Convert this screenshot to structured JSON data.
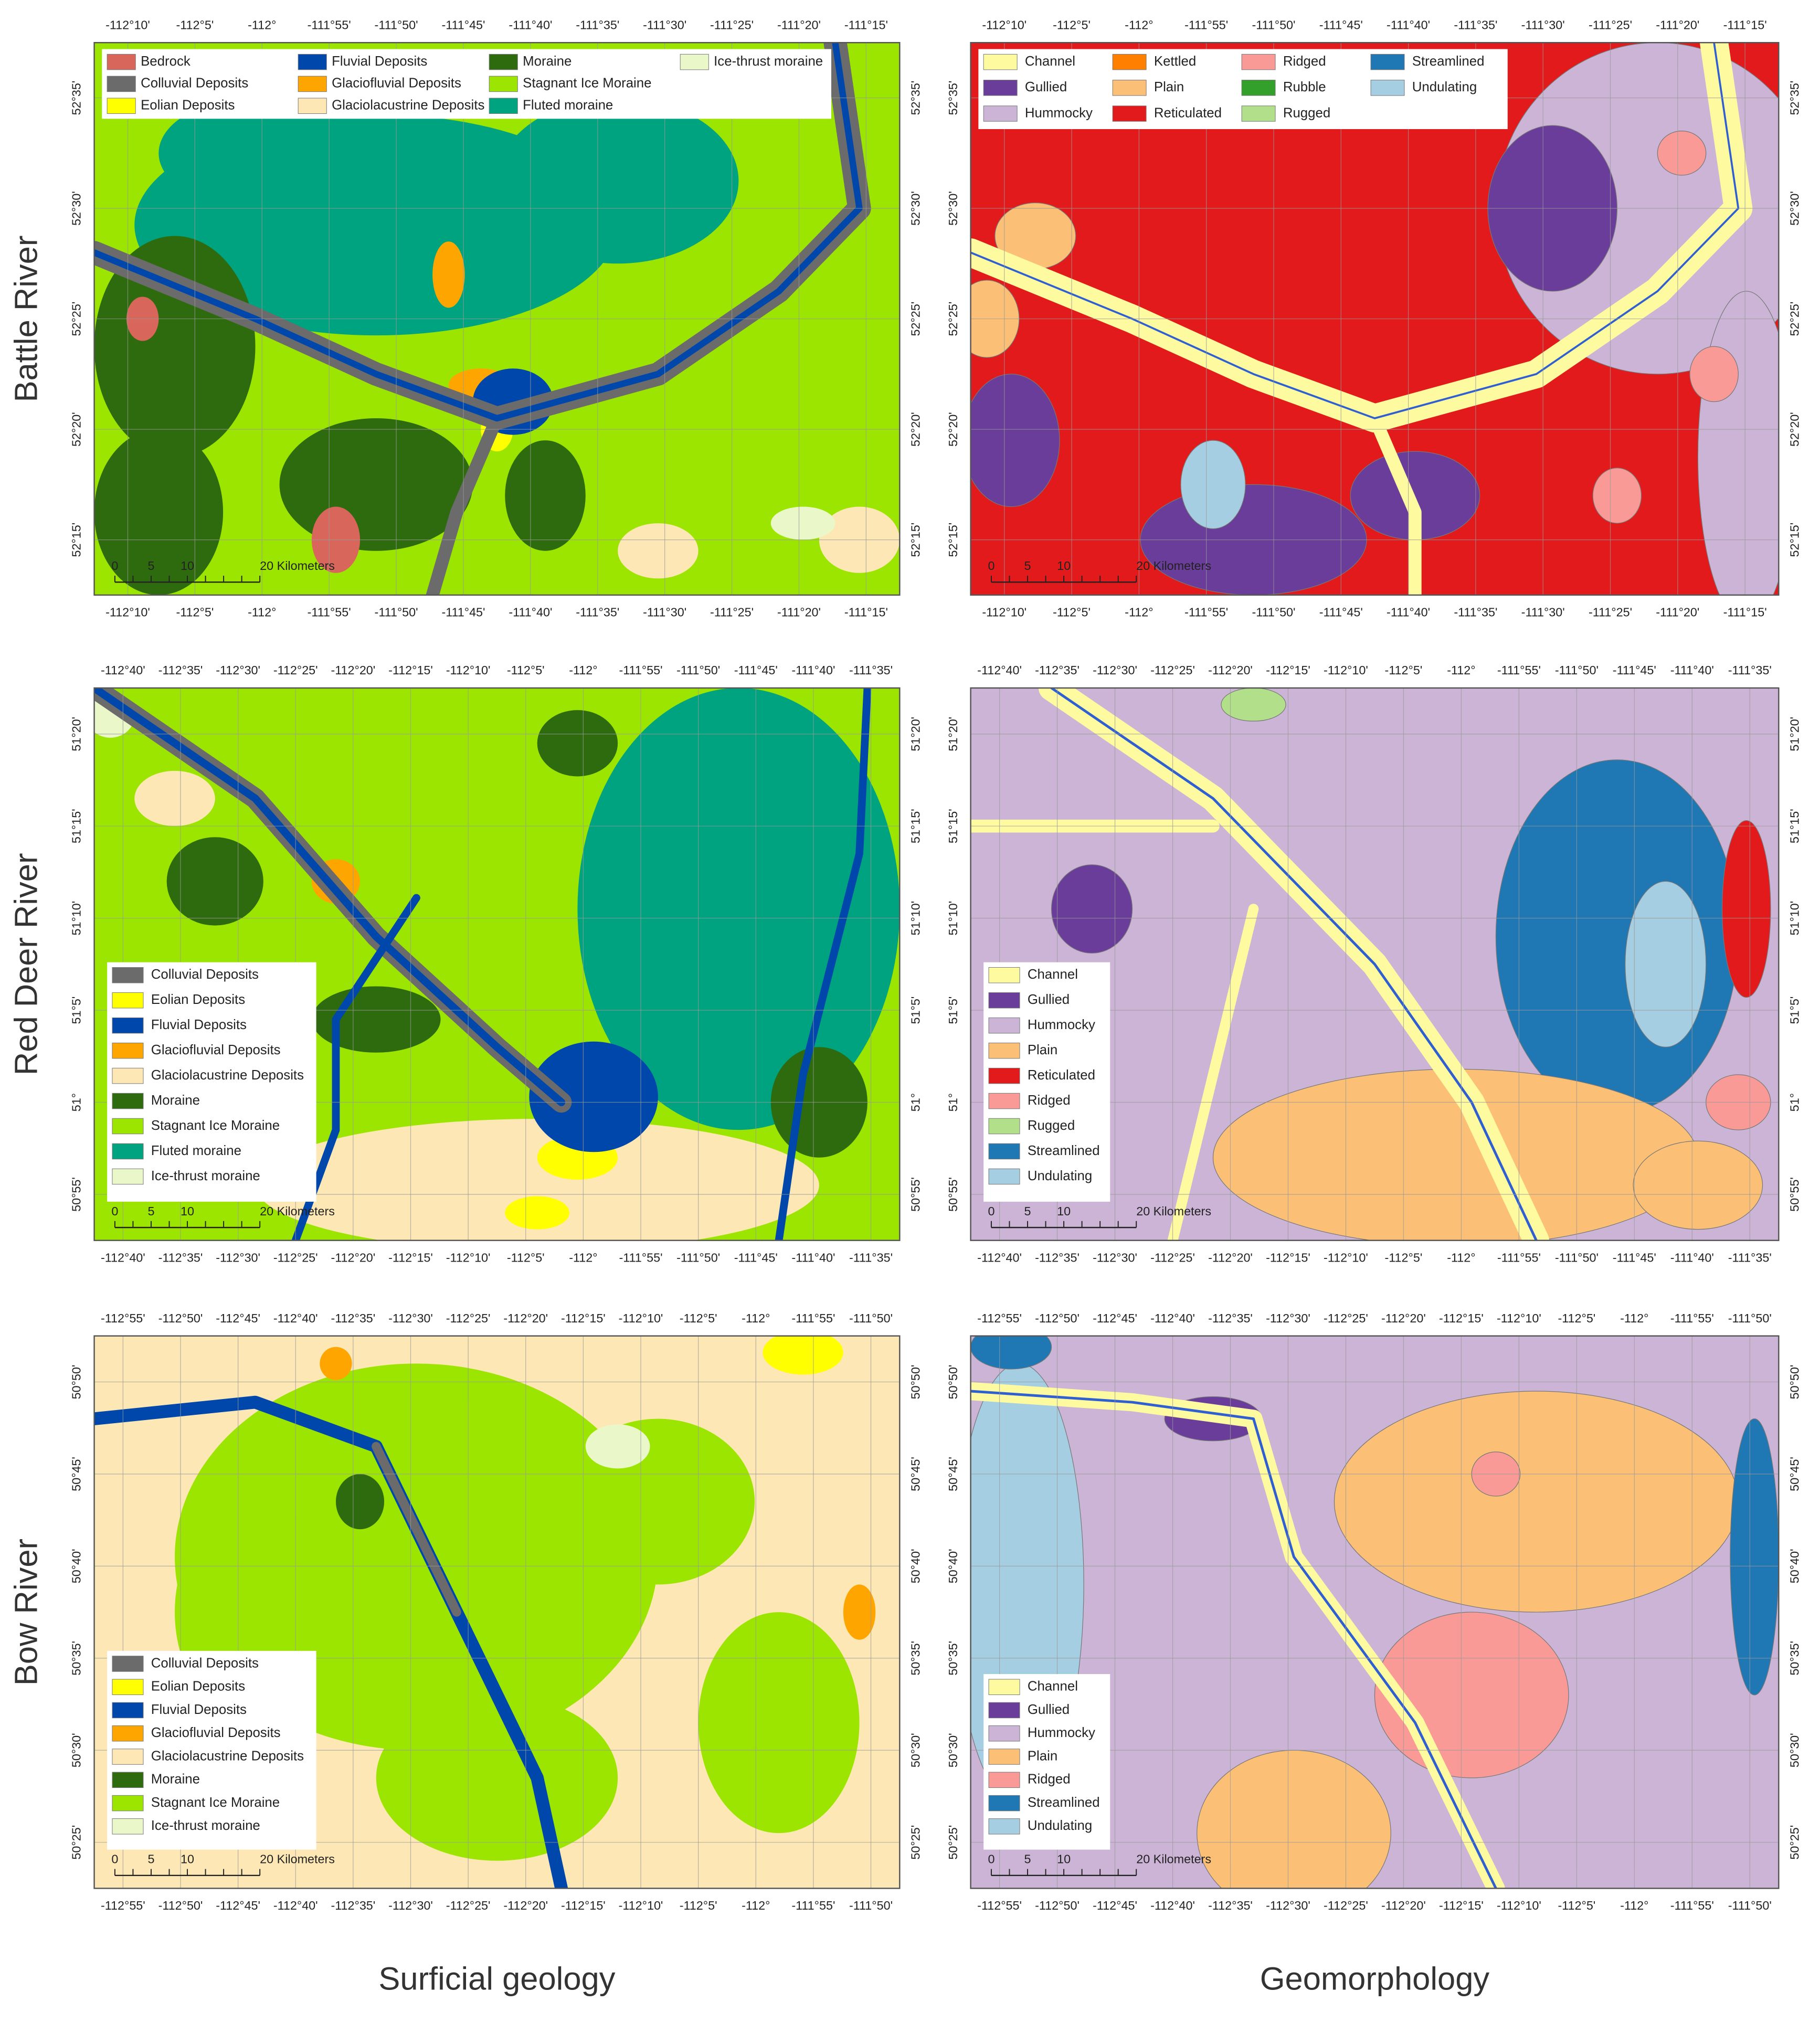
{
  "column_titles": [
    "Surficial geology",
    "Geomorphology"
  ],
  "scale_bar_labels": [
    "0",
    "5",
    "10",
    "20 Kilometers"
  ],
  "rows": [
    {
      "label": "Battle River",
      "lon_ticks": [
        "-112°10'",
        "-112°5'",
        "-112°",
        "-111°55'",
        "-111°50'",
        "-111°45'",
        "-111°40'",
        "-111°35'",
        "-111°30'",
        "-111°25'",
        "-111°20'",
        "-111°15'"
      ],
      "lat_ticks": [
        "52°35'",
        "52°30'",
        "52°25'",
        "52°20'",
        "52°15'"
      ],
      "maps": [
        {
          "legend": [
            {
              "name": "Bedrock",
              "color": "#d9665a"
            },
            {
              "name": "Colluvial Deposits",
              "color": "#6b6b6b"
            },
            {
              "name": "Eolian Deposits",
              "color": "#ffff00"
            },
            {
              "name": "Fluvial Deposits",
              "color": "#0047ab"
            },
            {
              "name": "Glaciofluvial Deposits",
              "color": "#ffa500"
            },
            {
              "name": "Glaciolacustrine Deposits",
              "color": "#fde7b5"
            },
            {
              "name": "Moraine",
              "color": "#2e6b0e"
            },
            {
              "name": "Stagnant Ice Moraine",
              "color": "#9be500"
            },
            {
              "name": "Fluted moraine",
              "color": "#00a37f"
            },
            {
              "name": "Ice-thrust moraine",
              "color": "#eaf7c8"
            }
          ]
        },
        {
          "legend": [
            {
              "name": "Channel",
              "color": "#fdfaa0"
            },
            {
              "name": "Gullied",
              "color": "#6a3d9a"
            },
            {
              "name": "Hummocky",
              "color": "#cbb4d6"
            },
            {
              "name": "Kettled",
              "color": "#ff7f00"
            },
            {
              "name": "Plain",
              "color": "#fbbf75"
            },
            {
              "name": "Reticulated",
              "color": "#e31a1c"
            },
            {
              "name": "Ridged",
              "color": "#f99a97"
            },
            {
              "name": "Rubble",
              "color": "#33a02c"
            },
            {
              "name": "Rugged",
              "color": "#b2df8a"
            },
            {
              "name": "Streamlined",
              "color": "#1f78b4"
            },
            {
              "name": "Undulating",
              "color": "#a6cee3"
            }
          ]
        }
      ]
    },
    {
      "label": "Red Deer River",
      "lon_ticks": [
        "-112°40'",
        "-112°35'",
        "-112°30'",
        "-112°25'",
        "-112°20'",
        "-112°15'",
        "-112°10'",
        "-112°5'",
        "-112°",
        "-111°55'",
        "-111°50'",
        "-111°45'",
        "-111°40'",
        "-111°35'"
      ],
      "lat_ticks": [
        "51°20'",
        "51°15'",
        "51°10'",
        "51°5'",
        "51°",
        "50°55'"
      ],
      "maps": [
        {
          "legend": [
            {
              "name": "Colluvial Deposits",
              "color": "#6b6b6b"
            },
            {
              "name": "Eolian Deposits",
              "color": "#ffff00"
            },
            {
              "name": "Fluvial Deposits",
              "color": "#0047ab"
            },
            {
              "name": "Glaciofluvial Deposits",
              "color": "#ffa500"
            },
            {
              "name": "Glaciolacustrine Deposits",
              "color": "#fde7b5"
            },
            {
              "name": "Moraine",
              "color": "#2e6b0e"
            },
            {
              "name": "Stagnant Ice Moraine",
              "color": "#9be500"
            },
            {
              "name": "Fluted moraine",
              "color": "#00a37f"
            },
            {
              "name": "Ice-thrust moraine",
              "color": "#eaf7c8"
            }
          ]
        },
        {
          "legend": [
            {
              "name": "Channel",
              "color": "#fdfaa0"
            },
            {
              "name": "Gullied",
              "color": "#6a3d9a"
            },
            {
              "name": "Hummocky",
              "color": "#cbb4d6"
            },
            {
              "name": "Plain",
              "color": "#fbbf75"
            },
            {
              "name": "Reticulated",
              "color": "#e31a1c"
            },
            {
              "name": "Ridged",
              "color": "#f99a97"
            },
            {
              "name": "Rugged",
              "color": "#b2df8a"
            },
            {
              "name": "Streamlined",
              "color": "#1f78b4"
            },
            {
              "name": "Undulating",
              "color": "#a6cee3"
            }
          ]
        }
      ]
    },
    {
      "label": "Bow River",
      "lon_ticks": [
        "-112°55'",
        "-112°50'",
        "-112°45'",
        "-112°40'",
        "-112°35'",
        "-112°30'",
        "-112°25'",
        "-112°20'",
        "-112°15'",
        "-112°10'",
        "-112°5'",
        "-112°",
        "-111°55'",
        "-111°50'"
      ],
      "lat_ticks": [
        "50°50'",
        "50°45'",
        "50°40'",
        "50°35'",
        "50°30'",
        "50°25'"
      ],
      "maps": [
        {
          "legend": [
            {
              "name": "Colluvial Deposits",
              "color": "#6b6b6b"
            },
            {
              "name": "Eolian Deposits",
              "color": "#ffff00"
            },
            {
              "name": "Fluvial Deposits",
              "color": "#0047ab"
            },
            {
              "name": "Glaciofluvial Deposits",
              "color": "#ffa500"
            },
            {
              "name": "Glaciolacustrine Deposits",
              "color": "#fde7b5"
            },
            {
              "name": "Moraine",
              "color": "#2e6b0e"
            },
            {
              "name": "Stagnant Ice Moraine",
              "color": "#9be500"
            },
            {
              "name": "Ice-thrust moraine",
              "color": "#eaf7c8"
            }
          ]
        },
        {
          "legend": [
            {
              "name": "Channel",
              "color": "#fdfaa0"
            },
            {
              "name": "Gullied",
              "color": "#6a3d9a"
            },
            {
              "name": "Hummocky",
              "color": "#cbb4d6"
            },
            {
              "name": "Plain",
              "color": "#fbbf75"
            },
            {
              "name": "Ridged",
              "color": "#f99a97"
            },
            {
              "name": "Streamlined",
              "color": "#1f78b4"
            },
            {
              "name": "Undulating",
              "color": "#a6cee3"
            }
          ]
        }
      ]
    }
  ]
}
